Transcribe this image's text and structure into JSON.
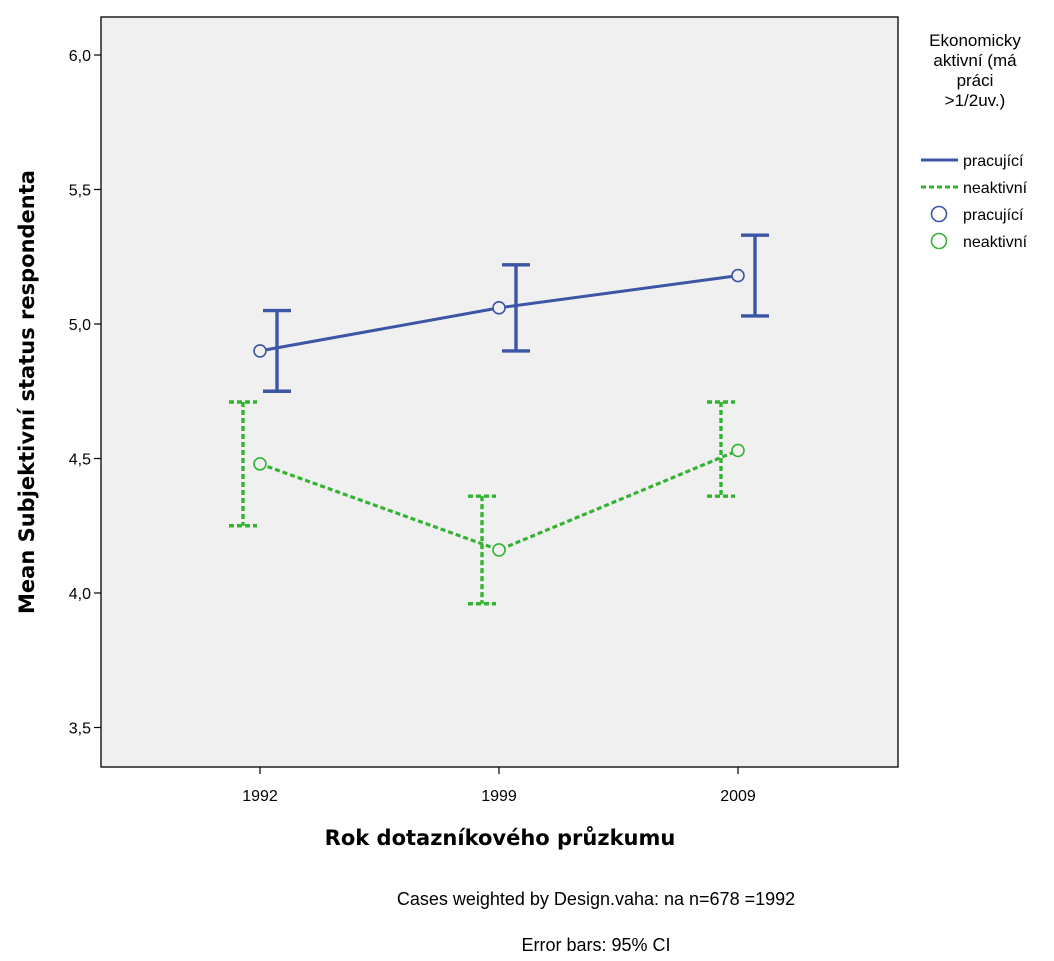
{
  "chart_data": {
    "type": "line",
    "title": "",
    "xlabel": "Rok dotazníkového průzkumu",
    "ylabel": "Mean Subjektivní status respondenta",
    "ylim": [
      3.37,
      6.17
    ],
    "yticks": [
      3.5,
      4.0,
      4.5,
      5.0,
      5.5,
      6.0
    ],
    "ytick_labels": [
      "3,5",
      "4,0",
      "4,5",
      "5,0",
      "5,5",
      "6,0"
    ],
    "categories": [
      "1992",
      "1999",
      "2009"
    ],
    "grid": false,
    "legend": {
      "title_lines": [
        "Ekonomicky",
        "aktivní (má",
        "práci",
        ">1/2uv.)"
      ],
      "placement": "right",
      "entries": [
        {
          "label": "pracující",
          "kind": "line",
          "style": "solid",
          "color": "#3c55a5"
        },
        {
          "label": "neaktivní",
          "kind": "line",
          "style": "dashed",
          "color": "#32b432"
        },
        {
          "label": "pracující",
          "kind": "marker",
          "color": "#3c55a5"
        },
        {
          "label": "neaktivní",
          "kind": "marker",
          "color": "#32b432"
        }
      ]
    },
    "series": [
      {
        "name": "pracující",
        "color": "#3c55a5",
        "style": "solid",
        "values": [
          4.9,
          5.06,
          5.18
        ],
        "ci_low": [
          4.75,
          4.9,
          5.03
        ],
        "ci_high": [
          5.05,
          5.22,
          5.33
        ]
      },
      {
        "name": "neaktivní",
        "color": "#32b432",
        "style": "dashed",
        "values": [
          4.48,
          4.16,
          4.53
        ],
        "ci_low": [
          4.25,
          3.96,
          4.36
        ],
        "ci_high": [
          4.71,
          4.36,
          4.71
        ]
      }
    ],
    "footnotes": [
      "Cases weighted by Design.vaha: na n=678 =1992",
      "Error bars: 95% CI"
    ],
    "plot_background": "#f0f0f0"
  }
}
